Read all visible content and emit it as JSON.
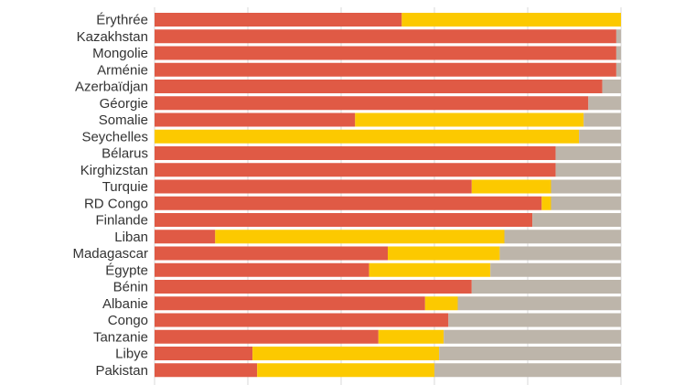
{
  "chart_data": {
    "type": "bar",
    "orientation": "horizontal",
    "stacked": true,
    "normalized": true,
    "xlim": [
      0,
      100
    ],
    "gridlines": true,
    "categories": [
      "Érythrée",
      "Kazakhstan",
      "Mongolie",
      "Arménie",
      "Azerbaïdjan",
      "Géorgie",
      "Somalie",
      "Seychelles",
      "Bélarus",
      "Kirghizstan",
      "Turquie",
      "RD Congo",
      "Finlande",
      "Liban",
      "Madagascar",
      "Égypte",
      "Bénin",
      "Albanie",
      "Congo",
      "Tanzanie",
      "Libye",
      "Pakistan"
    ],
    "series": [
      {
        "color": "#e05a45",
        "values": [
          53,
          99,
          99,
          99,
          96,
          93,
          43,
          0,
          86,
          86,
          68,
          83,
          81,
          13,
          50,
          46,
          68,
          58,
          63,
          48,
          21,
          22
        ]
      },
      {
        "color": "#fcc900",
        "values": [
          47,
          0,
          0,
          0,
          0,
          0,
          49,
          91,
          0,
          0,
          17,
          2,
          0,
          62,
          24,
          26,
          0,
          7,
          0,
          14,
          40,
          38
        ]
      },
      {
        "color": "#bdb5aa",
        "values": [
          0,
          1,
          1,
          1,
          4,
          7,
          8,
          9,
          14,
          14,
          15,
          15,
          19,
          25,
          26,
          28,
          32,
          35,
          37,
          38,
          39,
          40
        ]
      }
    ]
  }
}
